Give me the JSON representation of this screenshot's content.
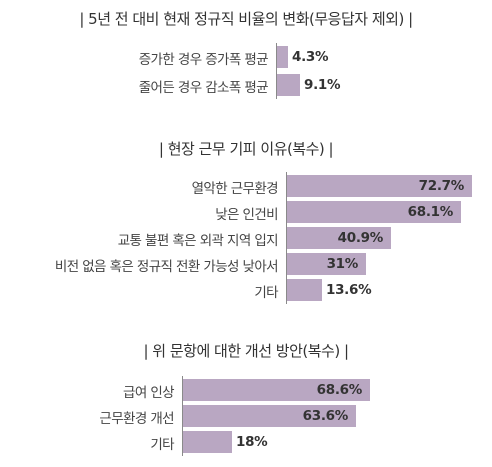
{
  "chart_data": [
    {
      "type": "bar",
      "orientation": "horizontal",
      "title": "| 5년 전 대비 현재 정규직 비율의 변화(무응답자 제외) |",
      "categories": [
        "증가한 경우 증가폭 평균",
        "줄어든 경우 감소폭 평균"
      ],
      "values": [
        4.3,
        9.1
      ],
      "value_labels": [
        "4.3%",
        "9.1%"
      ],
      "xlim": [
        0,
        100
      ],
      "color": "#b9a7c2"
    },
    {
      "type": "bar",
      "orientation": "horizontal",
      "title": "| 현장 근무 기피 이유(복수) |",
      "categories": [
        "열악한 근무환경",
        "낮은 인건비",
        "교통 불편 혹은 외곽 지역 입지",
        "비전 없음 혹은 정규직 전환 가능성 낮아서",
        "기타"
      ],
      "values": [
        72.7,
        68.1,
        40.9,
        31,
        13.6
      ],
      "value_labels": [
        "72.7%",
        "68.1%",
        "40.9%",
        "31%",
        "13.6%"
      ],
      "xlim": [
        0,
        100
      ],
      "color": "#b9a7c2"
    },
    {
      "type": "bar",
      "orientation": "horizontal",
      "title": "| 위 문항에 대한 개선 방안(복수) |",
      "categories": [
        "급여 인상",
        "근무환경 개선",
        "기타"
      ],
      "values": [
        68.6,
        63.6,
        18
      ],
      "value_labels": [
        "68.6%",
        "63.6%",
        "18%"
      ],
      "xlim": [
        0,
        100
      ],
      "color": "#b9a7c2"
    }
  ]
}
